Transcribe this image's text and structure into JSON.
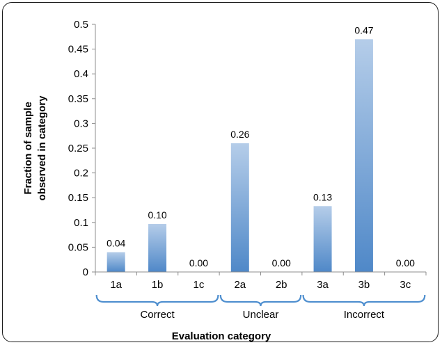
{
  "chart_data": {
    "type": "bar",
    "categories": [
      "1a",
      "1b",
      "1c",
      "2a",
      "2b",
      "3a",
      "3b",
      "3c"
    ],
    "values": [
      0.04,
      0.097,
      0.0,
      0.26,
      0.0,
      0.133,
      0.47,
      0.0
    ],
    "data_labels": [
      "0.04",
      "0.10",
      "0.00",
      "0.26",
      "0.00",
      "0.13",
      "0.47",
      "0.00"
    ],
    "groups": [
      {
        "label": "Correct",
        "from": 0,
        "to": 2
      },
      {
        "label": "Unclear",
        "from": 3,
        "to": 4
      },
      {
        "label": "Incorrect",
        "from": 5,
        "to": 7
      }
    ],
    "yticks": [
      "0",
      "0.05",
      "0.1",
      "0.15",
      "0.2",
      "0.25",
      "0.3",
      "0.35",
      "0.4",
      "0.45",
      "0.5"
    ],
    "ylim": [
      0,
      0.5
    ],
    "ylabel_line1": "Fraction of sample",
    "ylabel_line2": "observed in category",
    "xlabel": "Evaluation category",
    "grid": false,
    "colors": {
      "bar_top": "#b5cde9",
      "bar_bottom": "#4f88c8",
      "brace": "#4f8fcf"
    }
  }
}
